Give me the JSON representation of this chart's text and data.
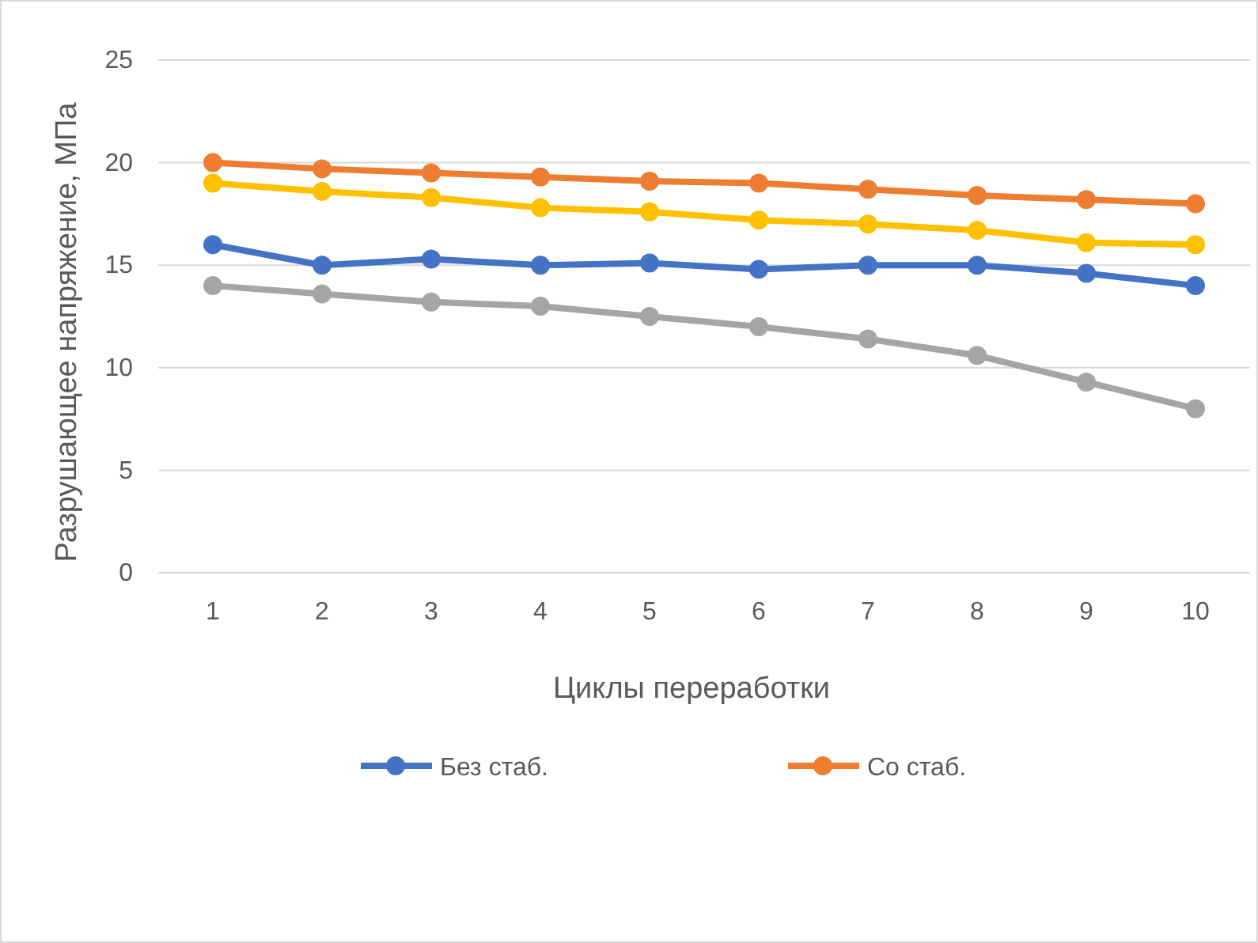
{
  "chart_data": {
    "type": "line",
    "xlabel": "Циклы переработки",
    "ylabel": "Разрушающее напряжение, МПа",
    "categories": [
      "1",
      "2",
      "3",
      "4",
      "5",
      "6",
      "7",
      "8",
      "9",
      "10"
    ],
    "series": [
      {
        "name": "Без стаб.",
        "color": "#4472c4",
        "values": [
          16,
          15,
          15.3,
          15,
          15.1,
          14.8,
          15,
          15,
          14.6,
          14
        ]
      },
      {
        "name": "Со стаб.",
        "color": "#ed7d31",
        "values": [
          20,
          19.7,
          19.5,
          19.3,
          19.1,
          19,
          18.7,
          18.4,
          18.2,
          18
        ]
      },
      {
        "color": "#a5a5a5",
        "values": [
          14,
          13.6,
          13.2,
          13,
          12.5,
          12,
          11.4,
          10.6,
          9.3,
          8
        ]
      },
      {
        "color": "#ffc000",
        "values": [
          19,
          18.6,
          18.3,
          17.8,
          17.6,
          17.2,
          17,
          16.7,
          16.1,
          16
        ]
      }
    ],
    "ylim": [
      0,
      25
    ],
    "yticks": [
      0,
      5,
      10,
      15,
      20,
      25
    ],
    "grid": "y",
    "legend": "bottom",
    "marker": "circle",
    "line_style": "solid"
  }
}
